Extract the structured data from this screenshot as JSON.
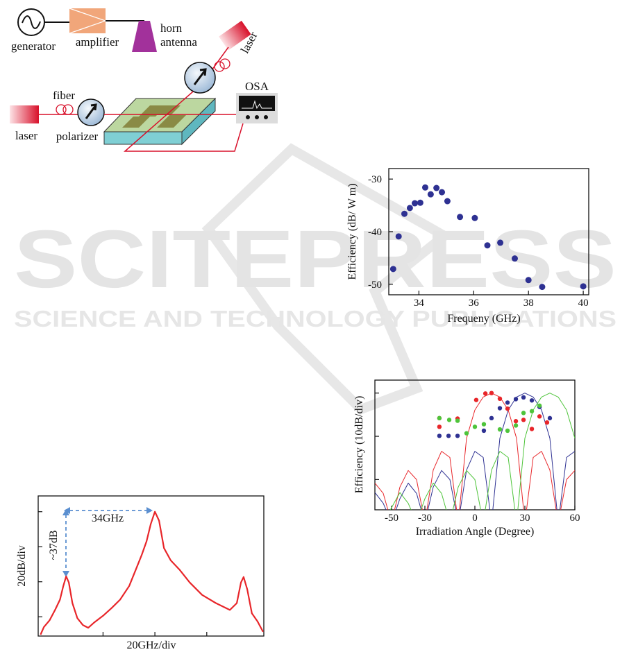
{
  "diagram": {
    "generator": "generator",
    "amplifier": "amplifier",
    "horn": "horn",
    "antenna": "antenna",
    "laser_top": "laser",
    "fiber": "fiber",
    "laser_left": "laser",
    "polarizer": "polarizer",
    "osa": "OSA"
  },
  "watermark": {
    "title": "SCITEPRESS",
    "subtitle": "SCIENCE AND TECHNOLOGY PUBLICATIONS"
  },
  "chart_data": [
    {
      "type": "scatter",
      "xlabel": "Frequeny (GHz)",
      "ylabel": "Efficiency (dB/ W m)",
      "color": "#2e3192",
      "x": [
        33.06,
        33.26,
        33.47,
        33.67,
        33.85,
        34.05,
        34.23,
        34.43,
        34.64,
        34.84,
        35.04,
        35.5,
        36.04,
        36.5,
        36.97,
        37.5,
        38.0,
        38.5,
        40.0
      ],
      "values": [
        -47.1,
        -40.9,
        -36.6,
        -35.5,
        -34.6,
        -34.5,
        -31.6,
        -32.9,
        -31.7,
        -32.5,
        -34.2,
        -37.2,
        -37.4,
        -42.6,
        -42.1,
        -45.1,
        -49.2,
        -50.5,
        -50.4
      ],
      "xlim": [
        32.9,
        40.2
      ],
      "ylim": [
        -52,
        -28
      ],
      "xticks": [
        34,
        36,
        38,
        40
      ],
      "yticks": [
        -30,
        -40,
        -50
      ]
    },
    {
      "type": "scatter",
      "xlabel": "Irradiation Angle (Degree)",
      "ylabel": "Efficiency  (10dB/div)",
      "series": [
        {
          "color": "#e8262a",
          "x": [
            -21.3,
            -21.3,
            -10.4,
            0.8,
            6.3,
            10,
            15,
            19.6,
            24.6,
            29.2,
            34.2,
            38.8,
            43.3
          ],
          "values": [
            -5.8,
            -7.8,
            -5.9,
            -1.6,
            -0.1,
            0,
            -1.3,
            -3.6,
            -6.5,
            -6.2,
            -8.3,
            -5.4,
            -6.8
          ]
        },
        {
          "color": "#2e3192",
          "x": [
            -21.3,
            -15.8,
            -10.4,
            5.4,
            10,
            15,
            19.6,
            24.6,
            29.2,
            34.2,
            38.8,
            45
          ],
          "values": [
            -9.9,
            -9.9,
            -9.9,
            -8.7,
            -5.8,
            -3.5,
            -2.2,
            -1.4,
            -1,
            -1.7,
            -3.2,
            -5.8
          ]
        },
        {
          "color": "#4ec43a",
          "x": [
            -21.3,
            -15.4,
            -10.4,
            -5,
            0,
            5.4,
            15,
            19.6,
            24.6,
            29.2,
            34.2,
            38.8
          ],
          "values": [
            -5.8,
            -6.2,
            -6.4,
            -9.3,
            -7.8,
            -7.2,
            -8.4,
            -8.7,
            -7.5,
            -4.6,
            -4.2,
            -2.9
          ]
        }
      ],
      "curve_x": [
        -60,
        -55,
        -50,
        -45,
        -40,
        -35,
        -30,
        -25,
        -20,
        -15,
        -10,
        -5,
        0,
        5,
        10,
        15,
        20,
        25,
        30,
        35,
        40,
        45,
        50,
        55,
        60
      ],
      "curves": [
        {
          "color": "#e8262a",
          "values": [
            -20.83,
            -23.19,
            -30,
            -21.74,
            -17.9,
            -20.0,
            -30,
            -17.81,
            -13.46,
            -14.89,
            -30,
            -10.45,
            -3.92,
            -0.91,
            0,
            -0.91,
            -3.92,
            -10.45,
            -30,
            -14.89,
            -13.46,
            -17.81,
            -30,
            -20.0,
            -17.9
          ]
        },
        {
          "color": "#2e3192",
          "values": [
            -23.0,
            -25.5,
            -30,
            -24.44,
            -20.83,
            -23.19,
            -30,
            -21.74,
            -17.9,
            -20.0,
            -30,
            -17.81,
            -13.46,
            -14.89,
            -30,
            -10.45,
            -3.92,
            -0.91,
            0,
            -0.91,
            -3.92,
            -10.45,
            -30,
            -14.89,
            -13.46
          ]
        },
        {
          "color": "#4ec43a",
          "values": [
            -27.4,
            -30,
            -26.5,
            -23.0,
            -25.5,
            -30,
            -24.44,
            -20.83,
            -23.19,
            -30,
            -21.74,
            -17.9,
            -20.0,
            -30,
            -17.81,
            -13.46,
            -14.89,
            -30,
            -10.45,
            -3.92,
            -0.91,
            0,
            -0.91,
            -3.92,
            -10.45
          ]
        }
      ],
      "xlim": [
        -60,
        60
      ],
      "ylim": [
        -27,
        3
      ],
      "xticks": [
        -50,
        -30,
        0,
        30,
        60
      ],
      "yticks": [
        0,
        -10,
        -20
      ],
      "ytick_labels": false
    },
    {
      "type": "line",
      "xlabel": "20GHz/div",
      "ylabel": "20dB/div",
      "color": "#e8262a",
      "x": [
        -44.1,
        -42.8,
        -40.6,
        -38.5,
        -36.6,
        -35.3,
        -34.2,
        -33.2,
        -31.8,
        -29.9,
        -27.8,
        -25.7,
        -23.3,
        -19.8,
        -16.6,
        -13.4,
        -9.9,
        -7.2,
        -5.1,
        -3.2,
        -1.6,
        0,
        1.6,
        3.5,
        6.1,
        9.6,
        13.4,
        18.2,
        23.5,
        28.9,
        31.6,
        33.2,
        34.2,
        35.6,
        37.4,
        39.6,
        41.7
      ],
      "values": [
        -70.2,
        -65.9,
        -62,
        -56.1,
        -50.2,
        -42.4,
        -36.9,
        -40.4,
        -52.2,
        -60.8,
        -64.7,
        -66.3,
        -63.1,
        -59.2,
        -54.9,
        -50.2,
        -42.4,
        -32.5,
        -24.7,
        -16.9,
        -7.1,
        0,
        -5.1,
        -20.8,
        -27.8,
        -33.3,
        -40.4,
        -47.5,
        -52.2,
        -56.1,
        -52.2,
        -40.4,
        -37.3,
        -44.3,
        -58,
        -62.7,
        -68.6
      ],
      "annotations": [
        "34GHz",
        "~37dB"
      ],
      "xlim": [
        -45,
        42
      ],
      "ylim": [
        -71,
        9
      ],
      "xticks": [
        -20,
        0,
        20
      ],
      "yticks": [
        0,
        -20,
        -40,
        -60
      ],
      "xtick_labels": false,
      "ytick_labels": false
    }
  ]
}
